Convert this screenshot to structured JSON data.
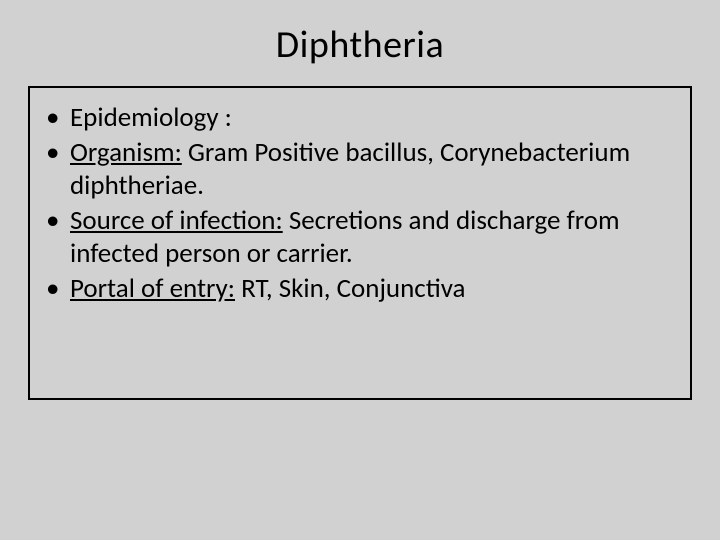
{
  "slide": {
    "background_color": "#d1d1d1",
    "border_color": "#000000",
    "text_color": "#000000",
    "title": "Diphtheria",
    "title_fontsize": 38,
    "body_fontsize": 27,
    "bullets": [
      {
        "lead": "",
        "lead_underlined": false,
        "rest": "Epidemiology :"
      },
      {
        "lead": "Organism:",
        "lead_underlined": true,
        "rest": " Gram Positive bacillus, Corynebacterium diphtheriae."
      },
      {
        "lead": "Source of infection:",
        "lead_underlined": true,
        "rest": " Secretions and discharge from infected person or carrier."
      },
      {
        "lead": "Portal of entry:",
        "lead_underlined": true,
        "rest": " RT, Skin, Conjunctiva"
      }
    ]
  }
}
